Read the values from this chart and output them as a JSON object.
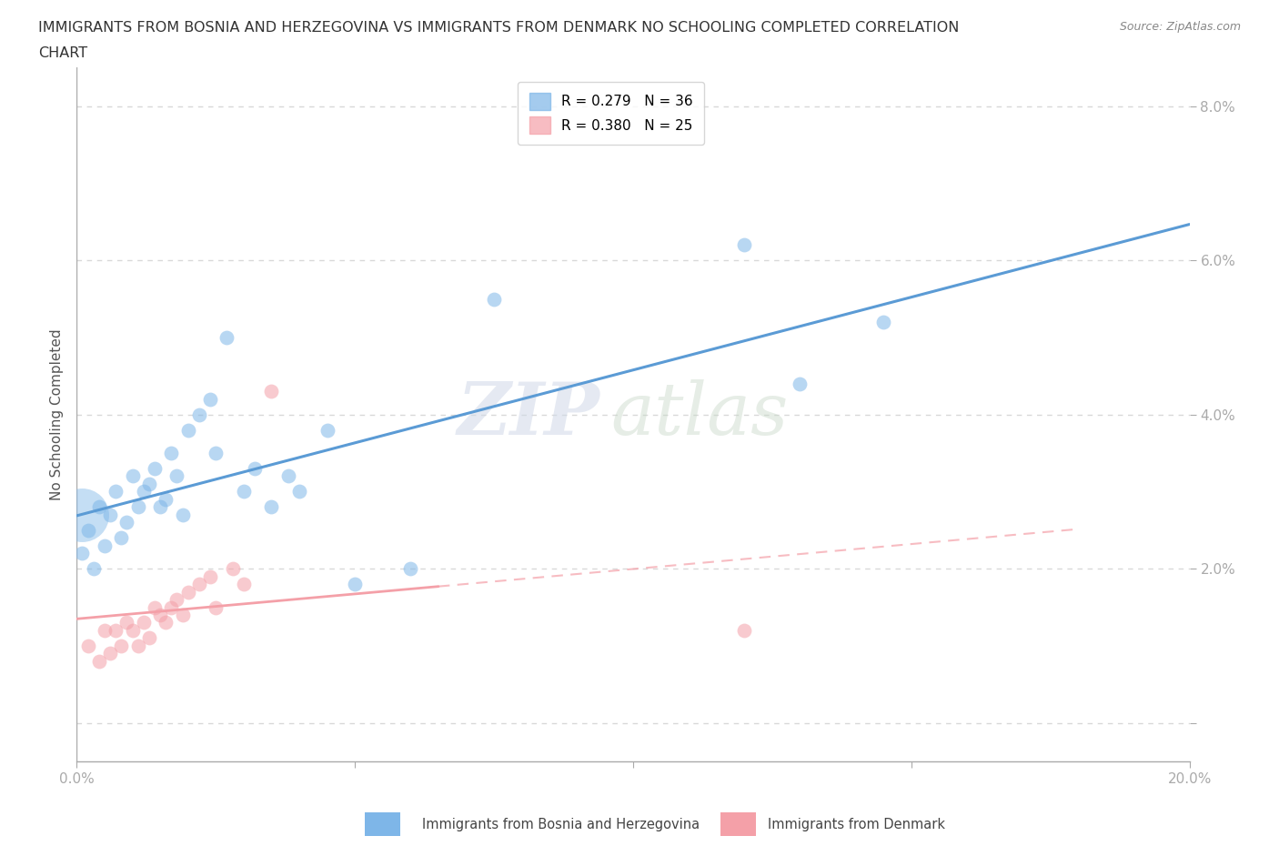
{
  "title_line1": "IMMIGRANTS FROM BOSNIA AND HERZEGOVINA VS IMMIGRANTS FROM DENMARK NO SCHOOLING COMPLETED CORRELATION",
  "title_line2": "CHART",
  "source": "Source: ZipAtlas.com",
  "ylabel": "No Schooling Completed",
  "xlim": [
    0.0,
    0.2
  ],
  "ylim": [
    -0.005,
    0.085
  ],
  "x_ticks": [
    0.0,
    0.05,
    0.1,
    0.15,
    0.2
  ],
  "y_ticks": [
    0.0,
    0.02,
    0.04,
    0.06,
    0.08
  ],
  "x_tick_labels": [
    "0.0%",
    "",
    "",
    "",
    "20.0%"
  ],
  "y_tick_labels": [
    "",
    "2.0%",
    "4.0%",
    "6.0%",
    "8.0%"
  ],
  "bosnia_color": "#7EB6E8",
  "denmark_color": "#F4A0A8",
  "bosnia_line_color": "#5B9BD5",
  "denmark_line_color": "#F4A0A8",
  "bosnia_legend": "Immigrants from Bosnia and Herzegovina",
  "denmark_legend": "Immigrants from Denmark",
  "R_bosnia": 0.279,
  "N_bosnia": 36,
  "R_denmark": 0.38,
  "N_denmark": 25,
  "bosnia_x": [
    0.001,
    0.002,
    0.003,
    0.004,
    0.005,
    0.006,
    0.007,
    0.008,
    0.009,
    0.01,
    0.011,
    0.012,
    0.013,
    0.014,
    0.015,
    0.016,
    0.017,
    0.018,
    0.019,
    0.02,
    0.022,
    0.024,
    0.025,
    0.027,
    0.03,
    0.032,
    0.035,
    0.038,
    0.04,
    0.045,
    0.05,
    0.06,
    0.075,
    0.12,
    0.13,
    0.145
  ],
  "bosnia_y": [
    0.022,
    0.025,
    0.02,
    0.028,
    0.023,
    0.027,
    0.03,
    0.024,
    0.026,
    0.032,
    0.028,
    0.03,
    0.031,
    0.033,
    0.028,
    0.029,
    0.035,
    0.032,
    0.027,
    0.038,
    0.04,
    0.042,
    0.035,
    0.05,
    0.03,
    0.033,
    0.028,
    0.032,
    0.03,
    0.038,
    0.018,
    0.02,
    0.055,
    0.062,
    0.044,
    0.052
  ],
  "bosnia_large_x": [
    0.001
  ],
  "bosnia_large_y": [
    0.027
  ],
  "denmark_x": [
    0.002,
    0.004,
    0.005,
    0.006,
    0.007,
    0.008,
    0.009,
    0.01,
    0.011,
    0.012,
    0.013,
    0.014,
    0.015,
    0.016,
    0.017,
    0.018,
    0.019,
    0.02,
    0.022,
    0.024,
    0.025,
    0.028,
    0.03,
    0.035,
    0.12
  ],
  "denmark_y": [
    0.01,
    0.008,
    0.012,
    0.009,
    0.012,
    0.01,
    0.013,
    0.012,
    0.01,
    0.013,
    0.011,
    0.015,
    0.014,
    0.013,
    0.015,
    0.016,
    0.014,
    0.017,
    0.018,
    0.019,
    0.015,
    0.02,
    0.018,
    0.043,
    0.012
  ],
  "background_color": "#ffffff",
  "grid_color": "#d8d8d8",
  "watermark_text": "ZIP",
  "watermark_text2": "atlas",
  "title_fontsize": 11.5,
  "axis_label_fontsize": 11,
  "tick_fontsize": 11,
  "legend_fontsize": 11
}
